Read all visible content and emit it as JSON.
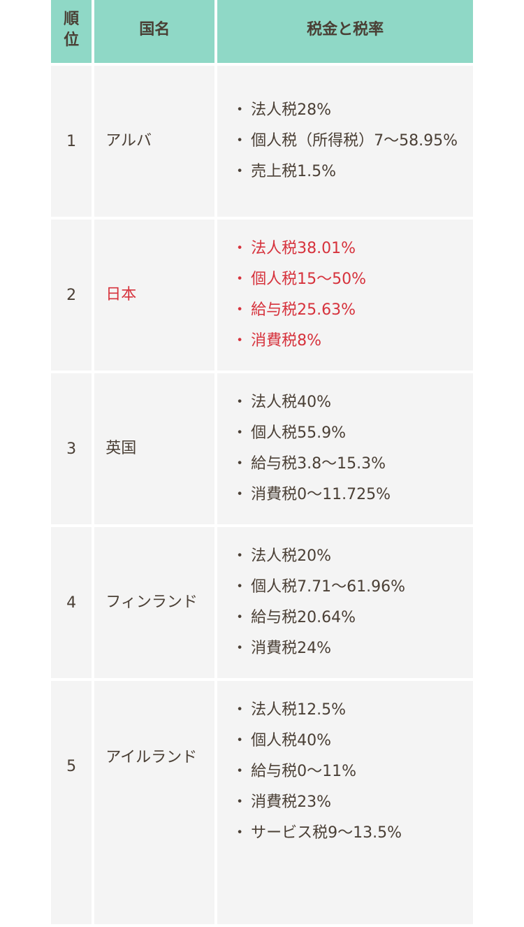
{
  "headers": {
    "rank": "順位",
    "country": "国名",
    "tax": "税金と税率"
  },
  "rows": [
    {
      "rank": "1",
      "country": "アルバ",
      "highlight": false,
      "taxes": [
        "法人税28%",
        "個人税（所得税）7〜58.95%",
        "売上税1.5%"
      ]
    },
    {
      "rank": "2",
      "country": "日本",
      "highlight": true,
      "taxes": [
        "法人税38.01%",
        "個人税15〜50%",
        "給与税25.63%",
        "消費税8%"
      ]
    },
    {
      "rank": "3",
      "country": "英国",
      "highlight": false,
      "taxes": [
        "法人税40%",
        "個人税55.9%",
        "給与税3.8〜15.3%",
        "消費税0〜11.725%"
      ]
    },
    {
      "rank": "4",
      "country": "フィンランド",
      "highlight": false,
      "taxes": [
        "法人税20%",
        "個人税7.71〜61.96%",
        "給与税20.64%",
        "消費税24%"
      ]
    },
    {
      "rank": "5",
      "country": "アイルランド",
      "highlight": false,
      "taxes": [
        "法人税12.5%",
        "個人税40%",
        "給与税0〜11%",
        "消費税23%",
        "サービス税9〜13.5%"
      ]
    }
  ],
  "bullet": "・",
  "colors": {
    "header_bg": "#8fd8c6",
    "cell_bg": "#f4f4f4",
    "highlight": "#d6323c",
    "text": "#4a3f35"
  }
}
